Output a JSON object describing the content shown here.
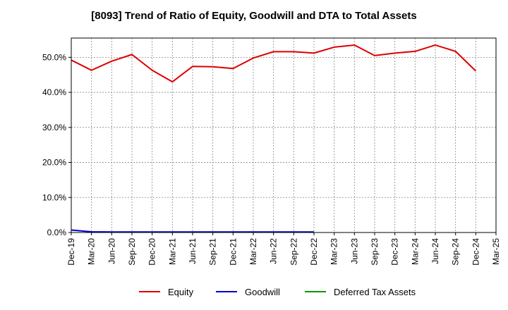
{
  "chart_data": {
    "type": "line",
    "title": "[8093]  Trend of Ratio of Equity, Goodwill and DTA to Total Assets",
    "xlabel": "",
    "ylabel": "",
    "x_ticks": [
      "Dec-19",
      "Mar-20",
      "Jun-20",
      "Sep-20",
      "Dec-20",
      "Mar-21",
      "Jun-21",
      "Sep-21",
      "Dec-21",
      "Mar-22",
      "Jun-22",
      "Sep-22",
      "Dec-22",
      "Mar-23",
      "Jun-23",
      "Sep-23",
      "Dec-23",
      "Mar-24",
      "Jun-24",
      "Sep-24",
      "Dec-24",
      "Mar-25"
    ],
    "y_ticks": [
      "0.0%",
      "10.0%",
      "20.0%",
      "30.0%",
      "40.0%",
      "50.0%"
    ],
    "ylim": [
      0,
      55.5
    ],
    "grid": true,
    "legend_position": "bottom",
    "series": [
      {
        "name": "Equity",
        "color": "#dd0000",
        "values": [
          49.2,
          46.3,
          48.9,
          50.8,
          46.3,
          43.0,
          47.4,
          47.3,
          46.8,
          49.8,
          51.6,
          51.6,
          51.2,
          52.9,
          53.5,
          50.5,
          51.2,
          51.7,
          53.5,
          51.7,
          46.1
        ]
      },
      {
        "name": "Goodwill",
        "color": "#0000cc",
        "values": [
          0.7,
          0.2,
          0.15,
          0.15,
          0.15,
          0.15,
          0.15,
          0.15,
          0.15,
          0.15,
          0.15,
          0.15,
          0.15
        ]
      },
      {
        "name": "Deferred Tax Assets",
        "color": "#009900",
        "values": []
      }
    ]
  }
}
